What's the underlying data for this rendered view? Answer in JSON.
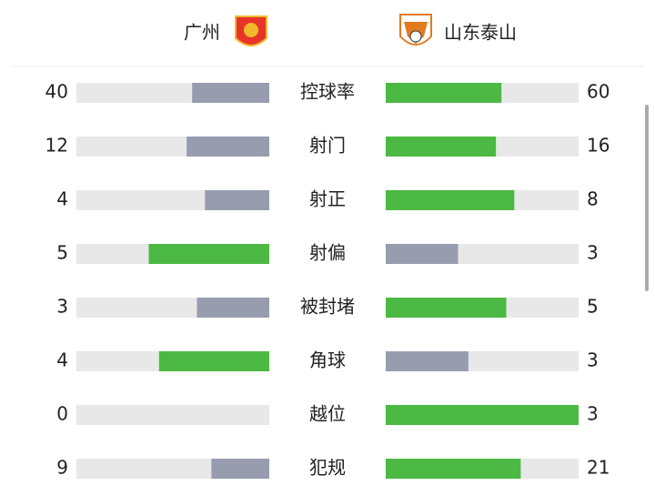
{
  "header": {
    "home": "广州",
    "away": "山东泰山"
  },
  "stats": [
    {
      "label": "控球率",
      "home": 40,
      "away": 60
    },
    {
      "label": "射门",
      "home": 12,
      "away": 16
    },
    {
      "label": "射正",
      "home": 4,
      "away": 8
    },
    {
      "label": "射偏",
      "home": 5,
      "away": 3
    },
    {
      "label": "被封堵",
      "home": 3,
      "away": 5
    },
    {
      "label": "角球",
      "home": 4,
      "away": 3
    },
    {
      "label": "越位",
      "home": 0,
      "away": 3
    },
    {
      "label": "犯规",
      "home": 9,
      "away": 21
    }
  ],
  "colors": {
    "leader": "#4cb944",
    "trailer": "#979dae",
    "track": "#e8e8e8"
  }
}
